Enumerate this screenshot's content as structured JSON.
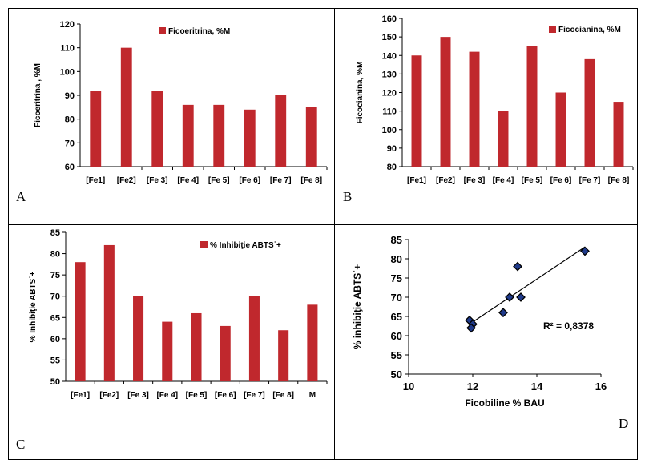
{
  "panels": [
    {
      "letter": "A"
    },
    {
      "letter": "B"
    },
    {
      "letter": "C"
    },
    {
      "letter": "D"
    }
  ],
  "colors": {
    "bar": "#C0282D",
    "marker_fill": "#1F3A8A",
    "text": "#000000",
    "border": "#000000"
  },
  "chart_data": [
    {
      "type": "bar",
      "categories": [
        "[Fe1]",
        "[Fe2]",
        "[Fe 3]",
        "[Fe 4]",
        "[Fe 5]",
        "[Fe 6]",
        "[Fe 7]",
        "[Fe 8]"
      ],
      "series": [
        {
          "name": "Ficoeritrina, %M",
          "values": [
            92,
            110,
            92,
            86,
            86,
            84,
            90,
            85
          ]
        }
      ],
      "ylabel": "Ficoeritrina , %M",
      "xlabel": "",
      "ylim": [
        60,
        120
      ],
      "yticks": [
        "60",
        "70",
        "80",
        "90",
        "100",
        "110",
        "120"
      ],
      "legend": "top-right",
      "grid": false
    },
    {
      "type": "bar",
      "categories": [
        "[Fe1]",
        "[Fe2]",
        "[Fe 3]",
        "[Fe 4]",
        "[Fe 5]",
        "[Fe 6]",
        "[Fe 7]",
        "[Fe 8]"
      ],
      "series": [
        {
          "name": "Ficocianina, %M",
          "values": [
            140,
            150,
            142,
            110,
            145,
            120,
            138,
            115
          ]
        }
      ],
      "ylabel": "Ficocianina, %M",
      "xlabel": "",
      "ylim": [
        80,
        160
      ],
      "yticks": [
        "80",
        "90",
        "100",
        "110",
        "120",
        "130",
        "140",
        "150",
        "160"
      ],
      "legend": "top-right",
      "grid": false
    },
    {
      "type": "bar",
      "categories": [
        "[Fe1]",
        "[Fe2]",
        "[Fe 3]",
        "[Fe 4]",
        "[Fe 5]",
        "[Fe 6]",
        "[Fe 7]",
        "[Fe 8]",
        "M"
      ],
      "series": [
        {
          "name": "% Inhibiţie ABTS˙+",
          "values": [
            78,
            82,
            70,
            64,
            66,
            63,
            70,
            62,
            68
          ]
        }
      ],
      "ylabel": "% Inhibiţie ABTS˙+",
      "xlabel": "",
      "ylim": [
        50,
        85
      ],
      "yticks": [
        "50",
        "55",
        "60",
        "65",
        "70",
        "75",
        "80",
        "85"
      ],
      "legend": "top-right",
      "grid": false
    },
    {
      "type": "scatter",
      "x": [
        11.9,
        12.0,
        11.95,
        12.95,
        13.15,
        13.4,
        13.5,
        15.5
      ],
      "y": [
        64,
        63,
        62,
        66,
        70,
        78,
        70,
        82
      ],
      "xlabel": "Ficobiline % BAU",
      "ylabel": "% inhibiţie ABTS˙+",
      "xlim": [
        10,
        16
      ],
      "ylim": [
        50,
        85
      ],
      "xticks": [
        "10",
        "12",
        "14",
        "16"
      ],
      "yticks": [
        "50",
        "55",
        "60",
        "65",
        "70",
        "75",
        "80",
        "85"
      ],
      "trendline": {
        "type": "linear",
        "r2_label": "R² = 0,8378"
      },
      "grid": false
    }
  ]
}
